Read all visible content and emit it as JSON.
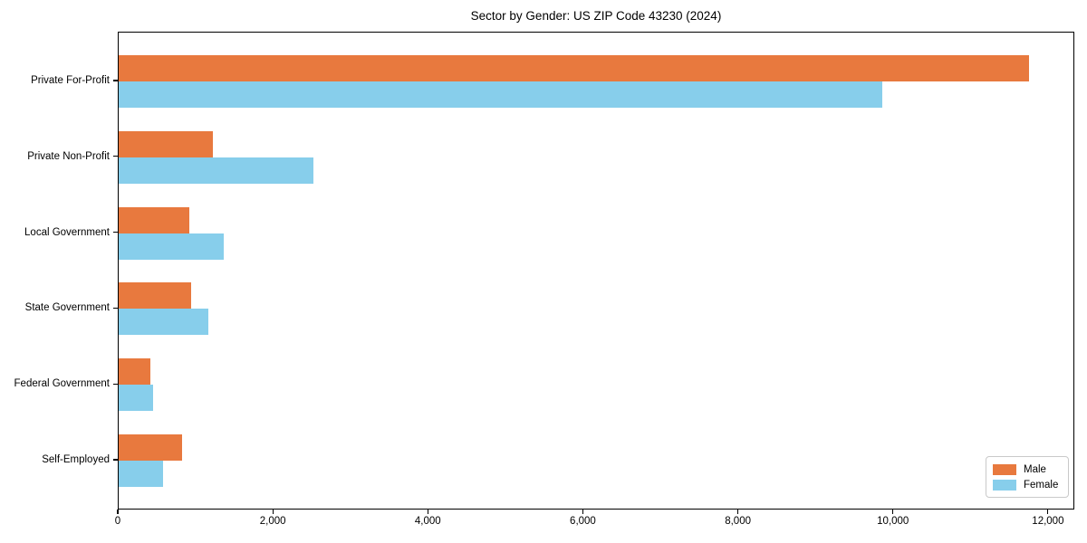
{
  "chart_data": {
    "type": "bar",
    "orientation": "horizontal",
    "title": "Sector by Gender: US ZIP Code 43230 (2024)",
    "categories": [
      "Private For-Profit",
      "Private Non-Profit",
      "Local Government",
      "State Government",
      "Federal Government",
      "Self-Employed"
    ],
    "series": [
      {
        "name": "Male",
        "color": "#e8793e",
        "values": [
          11740,
          1210,
          915,
          935,
          405,
          820
        ]
      },
      {
        "name": "Female",
        "color": "#87ceeb",
        "values": [
          9850,
          2510,
          1360,
          1155,
          440,
          570
        ]
      }
    ],
    "xlabel": "",
    "ylabel": "",
    "xlim": [
      0,
      12340
    ],
    "xticks": [
      0,
      2000,
      4000,
      6000,
      8000,
      10000,
      12000
    ],
    "xtick_labels": [
      "0",
      "2,000",
      "4,000",
      "6,000",
      "8,000",
      "10,000",
      "12,000"
    ],
    "grid": false,
    "legend_position": "lower-right",
    "colors": {
      "spine": "#000000",
      "text": "#000000",
      "background": "#ffffff"
    }
  }
}
